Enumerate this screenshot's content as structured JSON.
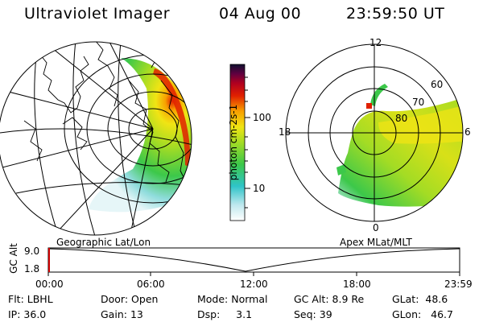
{
  "header": {
    "title": "Ultraviolet Imager",
    "date": "04 Aug 00",
    "time": "23:59:50 UT"
  },
  "colorbar": {
    "label": "photon cm-2s-1",
    "ticks": [
      "100",
      "10"
    ],
    "scale": "log"
  },
  "left_panel": {
    "caption": "Geographic Lat/Lon",
    "projection": "globe"
  },
  "right_panel": {
    "caption": "Apex MLat/MLT",
    "mlt_labels": [
      "12",
      "18",
      "6",
      "0"
    ],
    "lat_labels": [
      "60",
      "70",
      "80"
    ]
  },
  "timeline": {
    "ylabel": "GC Alt",
    "yticks": [
      "9.0",
      "1.8"
    ],
    "xticks": [
      "00:00",
      "06:00",
      "12:00",
      "18:00",
      "23:59"
    ]
  },
  "info": {
    "row1": [
      {
        "label": "Flt:",
        "value": "LBHL"
      },
      {
        "label": "Door:",
        "value": "Open"
      },
      {
        "label": "Mode:",
        "value": "Normal"
      },
      {
        "label": "GC Alt:",
        "value": "8.9 Re"
      },
      {
        "label": "GLat:",
        "value": "48.6"
      }
    ],
    "row2": [
      {
        "label": "IP:",
        "value": "36.0"
      },
      {
        "label": "Gain:",
        "value": "13"
      },
      {
        "label": "Dsp:",
        "value": "3.1"
      },
      {
        "label": "Seq:",
        "value": "39"
      },
      {
        "label": "GLon:",
        "value": "46.7"
      }
    ]
  },
  "colors": {
    "frame": "#000000",
    "cursor": "#cc0000",
    "ramp": [
      "#ffffff",
      "#bfe8ee",
      "#2fc4c8",
      "#3cc84a",
      "#a4dc24",
      "#f0e414",
      "#f8a000",
      "#e02000",
      "#b00020",
      "#600040",
      "#101030"
    ]
  }
}
